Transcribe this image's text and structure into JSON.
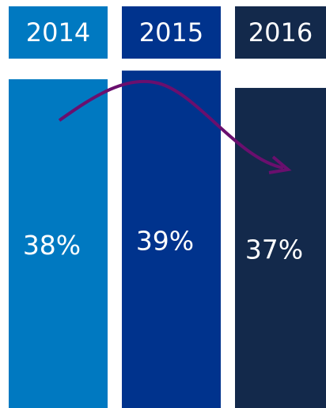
{
  "chart_data": {
    "type": "bar",
    "categories": [
      "2014",
      "2015",
      "2016"
    ],
    "values": [
      38,
      39,
      37
    ],
    "value_labels": [
      "38%",
      "39%",
      "37%"
    ],
    "colors": [
      "#0079c1",
      "#00338d",
      "#13294b"
    ]
  }
}
